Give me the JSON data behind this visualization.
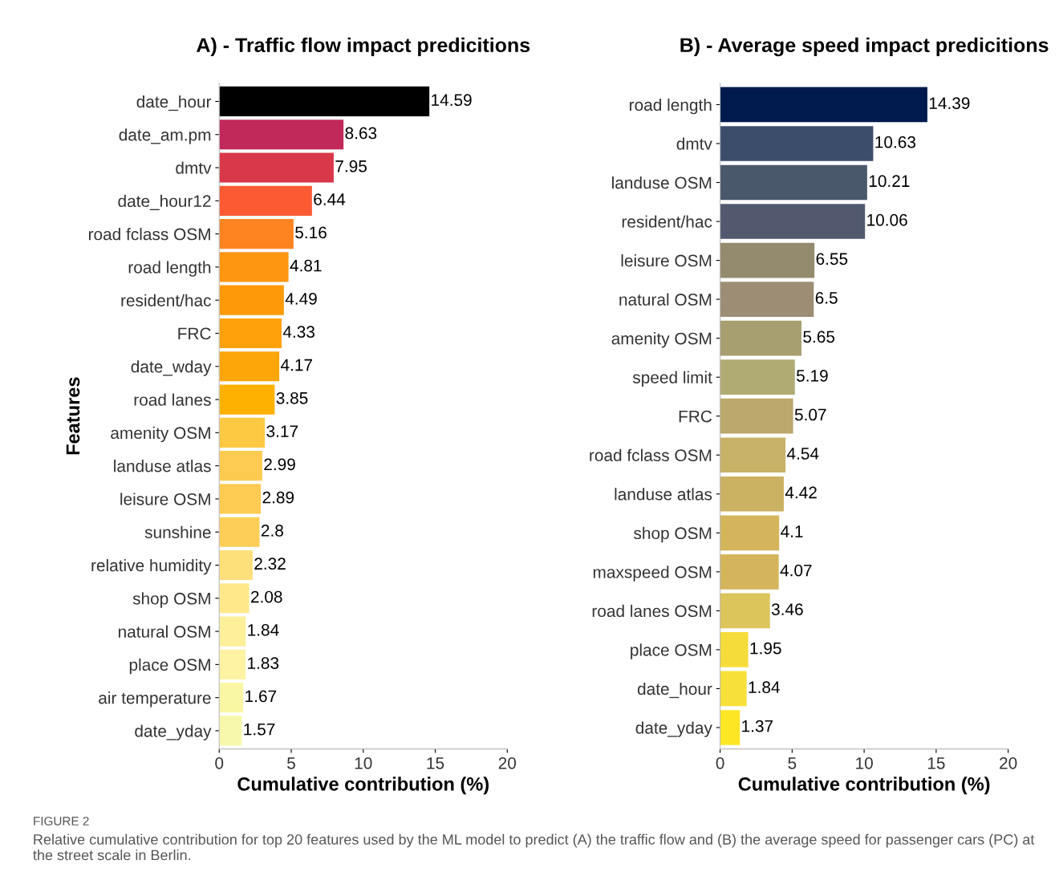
{
  "chart_data": [
    {
      "type": "bar",
      "orientation": "horizontal",
      "title": "A) - Traffic flow impact predicitions",
      "xlabel": "Cumulative contribution (%)",
      "ylabel": "Features",
      "data_labels": true,
      "grid": false,
      "xlim": [
        0,
        20
      ],
      "xticks": [
        0,
        5,
        10,
        15,
        20
      ],
      "categories": [
        "date_hour",
        "date_am.pm",
        "dmtv",
        "date_hour12",
        "road fclass OSM",
        "road length",
        "resident/hac",
        "FRC",
        "date_wday",
        "road lanes",
        "amenity OSM",
        "landuse atlas",
        "leisure OSM",
        "sunshine",
        "relative humidity",
        "shop OSM",
        "natural OSM",
        "place OSM",
        "air temperature",
        "date_yday"
      ],
      "values": [
        14.59,
        8.63,
        7.95,
        6.44,
        5.16,
        4.81,
        4.49,
        4.33,
        4.17,
        3.85,
        3.17,
        2.99,
        2.89,
        2.8,
        2.32,
        2.08,
        1.84,
        1.83,
        1.67,
        1.57
      ],
      "colors": [
        "#000000",
        "#c0295a",
        "#d9384a",
        "#fb5a33",
        "#fd8420",
        "#fe9612",
        "#fe9a0a",
        "#fea10b",
        "#fda60a",
        "#feb100",
        "#fdc842",
        "#fdcb52",
        "#fdcb52",
        "#fdcf59",
        "#fee07a",
        "#fee88a",
        "#fdf09a",
        "#fdf3a2",
        "#f9f7a4",
        "#f8f8ac"
      ],
      "annotations": [
        "FIGURE 2",
        "Relative cumulative contribution for top 20 features used by the ML model to predict (A) the traffic flow and (B) the average speed for passenger cars (PC) at the street scale in Berlin."
      ]
    },
    {
      "type": "bar",
      "orientation": "horizontal",
      "title": "B) - Average speed impact predicitions",
      "xlabel": "Cumulative contribution (%)",
      "data_labels": true,
      "grid": false,
      "xlim": [
        0,
        20
      ],
      "xticks": [
        0,
        5,
        10,
        15,
        20
      ],
      "categories": [
        "road length",
        "dmtv",
        "landuse OSM",
        "resident/hac",
        "leisure OSM",
        "natural OSM",
        "amenity OSM",
        "speed limit",
        "FRC",
        "road fclass OSM",
        "landuse atlas",
        "shop OSM",
        "maxspeed OSM",
        "road lanes OSM",
        "place OSM",
        "date_hour",
        "date_yday"
      ],
      "values": [
        14.39,
        10.63,
        10.21,
        10.06,
        6.55,
        6.5,
        5.65,
        5.19,
        5.07,
        4.54,
        4.42,
        4.1,
        4.07,
        3.46,
        1.95,
        1.84,
        1.37
      ],
      "colors": [
        "#001a4d",
        "#3c4d6c",
        "#4a586c",
        "#52596e",
        "#948b6e",
        "#9c8d74",
        "#a79f70",
        "#b0ab72",
        "#bca86c",
        "#c7b267",
        "#cbb162",
        "#d4b55c",
        "#d4b55c",
        "#dcc65b",
        "#f6dc3a",
        "#f8e03a",
        "#fde725"
      ]
    }
  ]
}
